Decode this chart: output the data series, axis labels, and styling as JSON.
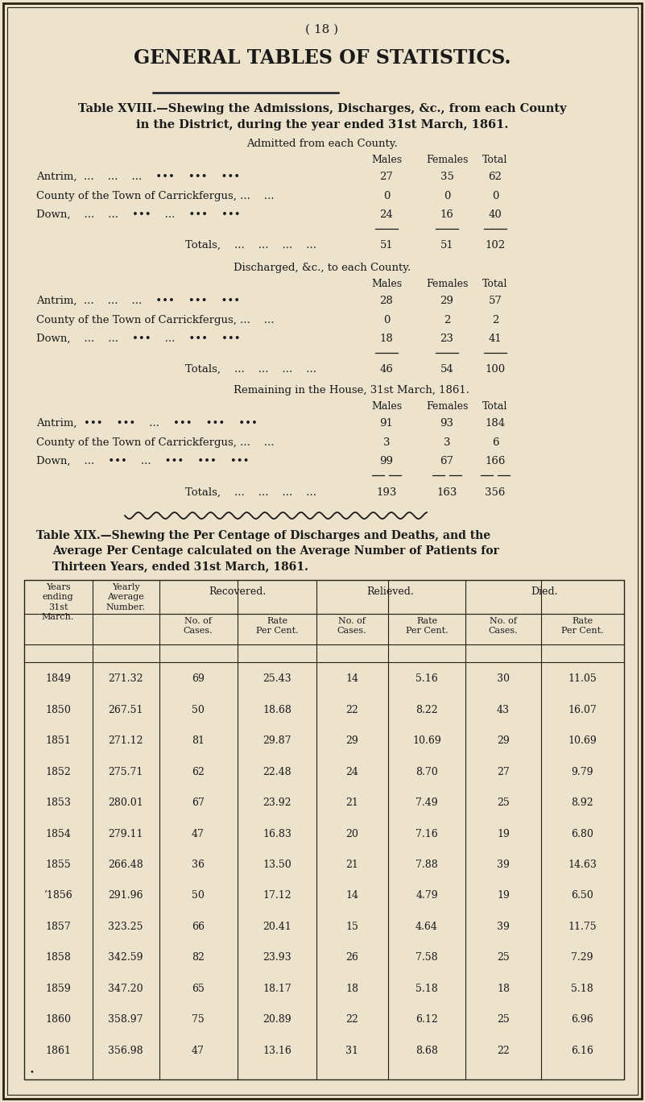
{
  "bg_color": "#ede3cc",
  "text_color": "#1a1a1a",
  "page_num": "( 18 )",
  "main_title": "GENERAL TABLES OF STATISTICS.",
  "table18_title_line1": "Table XVIII.—Shewing the Admissions, Discharges, &c., from each County",
  "table18_title_line2": "in the District, during the year ended 31st March, 1861.",
  "admitted_header": "Admitted from each County.",
  "discharged_header": "Discharged, &c., to each County.",
  "remaining_header": "Remaining in the House, 31st March, 1861.",
  "admitted_rows": [
    [
      "Antrim,  ...    ...    ...    •••    •••    •••",
      "27",
      "35",
      "62"
    ],
    [
      "County of the Town of Carrickfergus, ...    ...",
      "0",
      "0",
      "0"
    ],
    [
      "Down,    ...    ...    •••    ...    •••    •••",
      "24",
      "16",
      "40"
    ]
  ],
  "admitted_totals": [
    "51",
    "51",
    "102"
  ],
  "discharged_rows": [
    [
      "Antrim,  ...    ...    ...    •••    •••    •••",
      "28",
      "29",
      "57"
    ],
    [
      "County of the Town of Carrickfergus, ...    ...",
      "0",
      "2",
      "2"
    ],
    [
      "Down,    ...    ...    •••    ...    •••    •••",
      "18",
      "23",
      "41"
    ]
  ],
  "discharged_totals": [
    "46",
    "54",
    "100"
  ],
  "remaining_rows": [
    [
      "Antrim,  •••    •••    ...    •••    •••    •••",
      "91",
      "93",
      "184"
    ],
    [
      "County of the Town of Carrickfergus, ...    ...",
      "3",
      "3",
      "6"
    ],
    [
      "Down,    ...    •••    ...    •••    •••    •••",
      "99",
      "67",
      "166"
    ]
  ],
  "remaining_totals": [
    "193",
    "163",
    "356"
  ],
  "table19_title_line1": "Table XIX.—Shewing the Per Centage of Discharges and Deaths, and the",
  "table19_title_line2": "Average Per Centage calculated on the Average Number of Patients for",
  "table19_title_line3": "Thirteen Years, ended 31st March, 1861.",
  "table19_data": [
    [
      "1849",
      "271.32",
      "69",
      "25.43",
      "14",
      "5.16",
      "30",
      "11.05"
    ],
    [
      "1850",
      "267.51",
      "50",
      "18.68",
      "22",
      "8.22",
      "43",
      "16.07"
    ],
    [
      "1851",
      "271.12",
      "81",
      "29.87",
      "29",
      "10.69",
      "29",
      "10.69"
    ],
    [
      "1852",
      "275.71",
      "62",
      "22.48",
      "24",
      "8.70",
      "27",
      "9.79"
    ],
    [
      "1853",
      "280.01",
      "67",
      "23.92",
      "21",
      "7.49",
      "25",
      "8.92"
    ],
    [
      "1854",
      "279.11",
      "47",
      "16.83",
      "20",
      "7.16",
      "19",
      "6.80"
    ],
    [
      "1855",
      "266.48",
      "36",
      "13.50",
      "21",
      "7.88",
      "39",
      "14.63"
    ],
    [
      "’1856",
      "291.96",
      "50",
      "17.12",
      "14",
      "4.79",
      "19",
      "6.50"
    ],
    [
      "1857",
      "323.25",
      "66",
      "20.41",
      "15",
      "4.64",
      "39",
      "11.75"
    ],
    [
      "1858",
      "342.59",
      "82",
      "23.93",
      "26",
      "7.58",
      "25",
      "7.29"
    ],
    [
      "1859",
      "347.20",
      "65",
      "18.17",
      "18",
      "5.18",
      "18",
      "5.18"
    ],
    [
      "1860",
      "358.97",
      "75",
      "20.89",
      "22",
      "6.12",
      "25",
      "6.96"
    ],
    [
      "1861",
      "356.98",
      "47",
      "13.16",
      "31",
      "8.68",
      "22",
      "6.16"
    ]
  ]
}
